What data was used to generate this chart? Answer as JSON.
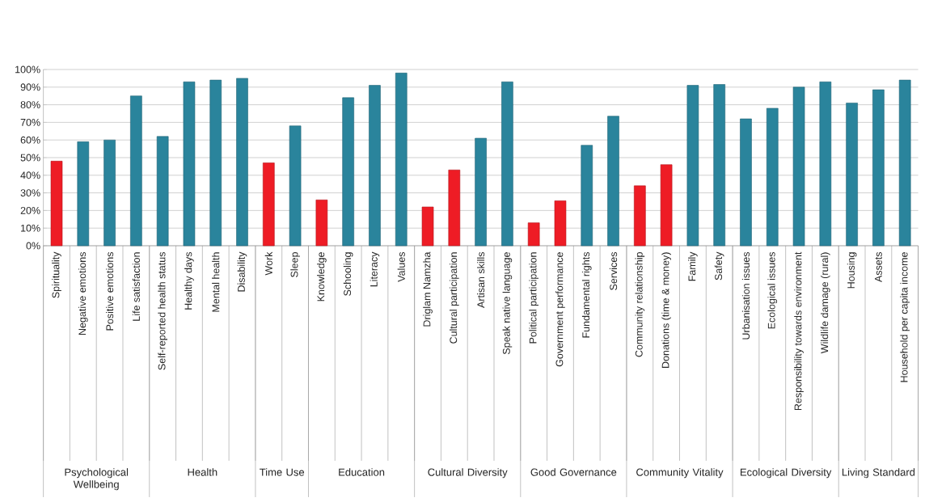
{
  "chart_data": {
    "type": "bar",
    "categories": [
      "Spirituality",
      "Negative emotions",
      "Positive emotions",
      "Life satisfaction",
      "Self-reported health status",
      "Healthy days",
      "Mental health",
      "Disability",
      "Work",
      "Sleep",
      "Knowledge",
      "Schooling",
      "Literacy",
      "Values",
      "Driglam Namzha",
      "Cultural participation",
      "Artisan skills",
      "Speak native language",
      "Political participation",
      "Government performance",
      "Fundamental rights",
      "Services",
      "Community relationship",
      "Donations (time & money)",
      "Family",
      "Safety",
      "Urbanisation issues",
      "Ecological issues",
      "Responsibility towards environment",
      "Wildlife damage (rural)",
      "Housing",
      "Assets",
      "Household per capita income"
    ],
    "values": [
      48,
      59,
      60,
      85,
      62,
      93,
      94,
      95,
      47,
      68,
      26,
      84,
      91,
      98,
      22,
      43,
      61,
      93,
      13,
      25.5,
      57,
      73.5,
      34,
      46,
      91,
      91.5,
      72,
      78,
      90,
      93,
      81,
      88.5,
      94
    ],
    "colors": [
      "#ee1c25",
      "#2a849c",
      "#2a849c",
      "#2a849c",
      "#2a849c",
      "#2a849c",
      "#2a849c",
      "#2a849c",
      "#ee1c25",
      "#2a849c",
      "#ee1c25",
      "#2a849c",
      "#2a849c",
      "#2a849c",
      "#ee1c25",
      "#ee1c25",
      "#2a849c",
      "#2a849c",
      "#ee1c25",
      "#ee1c25",
      "#2a849c",
      "#2a849c",
      "#ee1c25",
      "#ee1c25",
      "#2a849c",
      "#2a849c",
      "#2a849c",
      "#2a849c",
      "#2a849c",
      "#2a849c",
      "#2a849c",
      "#2a849c",
      "#2a849c"
    ],
    "ylim": [
      0,
      100
    ],
    "yticks": [
      {
        "value": 0,
        "label": "0%"
      },
      {
        "value": 10,
        "label": "10%"
      },
      {
        "value": 20,
        "label": "20%"
      },
      {
        "value": 30,
        "label": "30%"
      },
      {
        "value": 40,
        "label": "40%"
      },
      {
        "value": 50,
        "label": "50%"
      },
      {
        "value": 60,
        "label": "60%"
      },
      {
        "value": 70,
        "label": "70%"
      },
      {
        "value": 80,
        "label": "80%"
      },
      {
        "value": 90,
        "label": "90%"
      },
      {
        "value": 100,
        "label": "100%"
      }
    ],
    "grid": "y",
    "annotations": [
      "Psychological Wellbeing",
      "Health",
      "Time Use",
      "Education",
      "Cultural Diversity",
      "Good Governance",
      "Community Vitality",
      "Ecological Diversity",
      "Living Standard"
    ]
  }
}
